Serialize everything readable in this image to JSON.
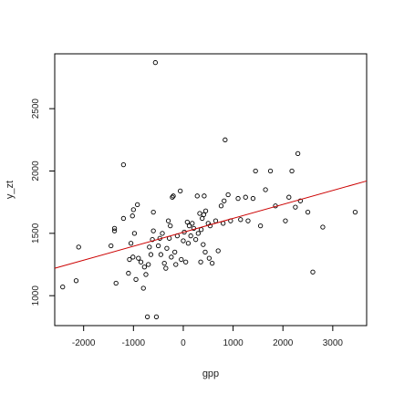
{
  "chart_data": {
    "type": "scatter",
    "xlabel": "gpp",
    "ylabel": "y_zt",
    "xlim": [
      -2580,
      3680
    ],
    "ylim": [
      760,
      2940
    ],
    "x_ticks": [
      -2000,
      -1000,
      0,
      1000,
      2000,
      3000
    ],
    "y_ticks": [
      1000,
      1500,
      2000,
      2500
    ],
    "x_tick_labels": [
      "-2000",
      "-1000",
      "0",
      "1000",
      "2000",
      "3000"
    ],
    "y_tick_labels": [
      "1000",
      "1500",
      "2000",
      "2500"
    ],
    "grid": false,
    "legend": "none",
    "point_color": "#000000",
    "fit_line_color": "#cc0000",
    "fit_line": {
      "x": [
        -2580,
        3680
      ],
      "y": [
        1220,
        1920
      ]
    },
    "points": [
      [
        -2420,
        1070
      ],
      [
        -2150,
        1120
      ],
      [
        -2100,
        1390
      ],
      [
        -1450,
        1400
      ],
      [
        -1380,
        1540
      ],
      [
        -1380,
        1520
      ],
      [
        -1350,
        1100
      ],
      [
        -1200,
        2050
      ],
      [
        -1200,
        1620
      ],
      [
        -1100,
        1180
      ],
      [
        -1080,
        1290
      ],
      [
        -1050,
        1420
      ],
      [
        -1020,
        1640
      ],
      [
        -1010,
        1310
      ],
      [
        -1000,
        1690
      ],
      [
        -980,
        1500
      ],
      [
        -950,
        1130
      ],
      [
        -920,
        1730
      ],
      [
        -900,
        1300
      ],
      [
        -850,
        1270
      ],
      [
        -800,
        1060
      ],
      [
        -780,
        1230
      ],
      [
        -750,
        1170
      ],
      [
        -720,
        830
      ],
      [
        -700,
        1250
      ],
      [
        -680,
        1390
      ],
      [
        -650,
        1330
      ],
      [
        -620,
        1450
      ],
      [
        -600,
        1520
      ],
      [
        -600,
        1670
      ],
      [
        -560,
        2870
      ],
      [
        -540,
        830
      ],
      [
        -500,
        1400
      ],
      [
        -470,
        1460
      ],
      [
        -450,
        1330
      ],
      [
        -420,
        1500
      ],
      [
        -380,
        1260
      ],
      [
        -350,
        1220
      ],
      [
        -330,
        1380
      ],
      [
        -300,
        1600
      ],
      [
        -280,
        1460
      ],
      [
        -260,
        1560
      ],
      [
        -240,
        1310
      ],
      [
        -220,
        1790
      ],
      [
        -200,
        1800
      ],
      [
        -170,
        1350
      ],
      [
        -150,
        1250
      ],
      [
        -120,
        1480
      ],
      [
        -60,
        1840
      ],
      [
        -40,
        1290
      ],
      [
        0,
        1440
      ],
      [
        20,
        1510
      ],
      [
        50,
        1270
      ],
      [
        80,
        1590
      ],
      [
        100,
        1420
      ],
      [
        120,
        1560
      ],
      [
        150,
        1480
      ],
      [
        180,
        1580
      ],
      [
        210,
        1540
      ],
      [
        250,
        1450
      ],
      [
        280,
        1800
      ],
      [
        300,
        1500
      ],
      [
        330,
        1660
      ],
      [
        350,
        1270
      ],
      [
        360,
        1530
      ],
      [
        380,
        1620
      ],
      [
        400,
        1410
      ],
      [
        410,
        1650
      ],
      [
        420,
        1800
      ],
      [
        440,
        1350
      ],
      [
        450,
        1680
      ],
      [
        500,
        1580
      ],
      [
        520,
        1300
      ],
      [
        540,
        1560
      ],
      [
        580,
        1260
      ],
      [
        650,
        1600
      ],
      [
        700,
        1360
      ],
      [
        760,
        1720
      ],
      [
        800,
        1580
      ],
      [
        820,
        1760
      ],
      [
        840,
        2250
      ],
      [
        900,
        1810
      ],
      [
        950,
        1600
      ],
      [
        1100,
        1780
      ],
      [
        1150,
        1610
      ],
      [
        1250,
        1790
      ],
      [
        1300,
        1600
      ],
      [
        1400,
        1780
      ],
      [
        1450,
        2000
      ],
      [
        1550,
        1560
      ],
      [
        1650,
        1850
      ],
      [
        1750,
        2000
      ],
      [
        1850,
        1720
      ],
      [
        2050,
        1600
      ],
      [
        2120,
        1790
      ],
      [
        2180,
        2000
      ],
      [
        2250,
        1710
      ],
      [
        2300,
        2140
      ],
      [
        2350,
        1760
      ],
      [
        2500,
        1670
      ],
      [
        2600,
        1190
      ],
      [
        2800,
        1550
      ],
      [
        3450,
        1670
      ]
    ]
  }
}
